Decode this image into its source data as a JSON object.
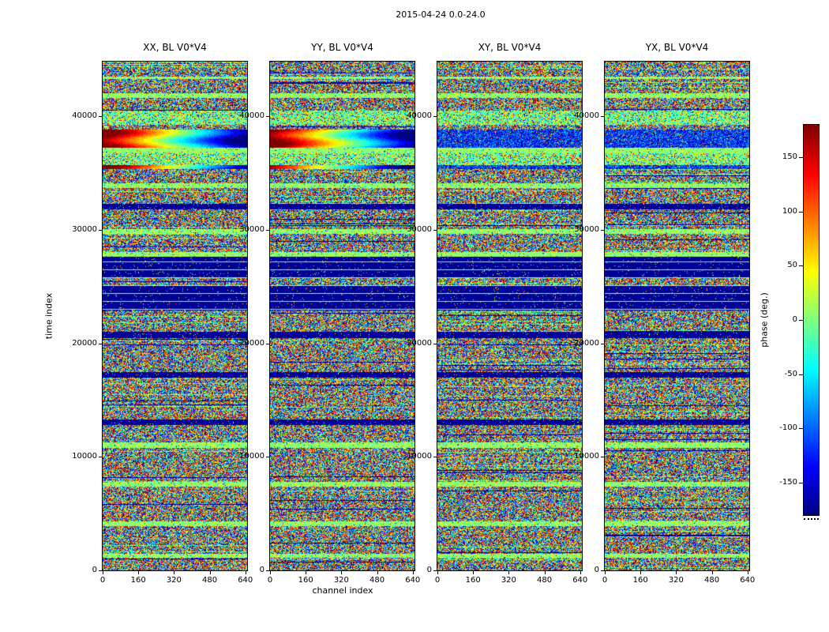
{
  "figure": {
    "title": "2015-04-24 0.0-24.0",
    "background": "#ffffff"
  },
  "chart_data": {
    "type": "heatmap",
    "title": "2015-04-24 0.0-24.0",
    "xlabel": "channel index",
    "ylabel": "time index",
    "x_axis": {
      "range": [
        0,
        648
      ],
      "ticks": [
        0,
        160,
        320,
        480,
        640
      ],
      "tick_labels": [
        "0",
        "160",
        "320",
        "480",
        "640"
      ]
    },
    "y_axis": {
      "range": [
        0,
        44800
      ],
      "ticks": [
        0,
        10000,
        20000,
        30000,
        40000
      ],
      "tick_labels": [
        "0",
        "10000",
        "20000",
        "30000",
        "40000"
      ]
    },
    "subplots": [
      {
        "pol": "XX",
        "title": "XX, BL V0*V4"
      },
      {
        "pol": "YY",
        "title": "YY, BL V0*V4"
      },
      {
        "pol": "XY",
        "title": "XY, BL V0*V4"
      },
      {
        "pol": "YX",
        "title": "YX, BL V0*V4"
      }
    ],
    "colorbar": {
      "label": "phase (deg.)",
      "min": -180,
      "max": 180,
      "ticks": [
        150,
        100,
        50,
        0,
        -50,
        -100,
        -150
      ],
      "tick_labels": [
        "150",
        "100",
        "50",
        "0",
        "-50",
        "-100",
        "-150"
      ],
      "colormap": "jet"
    },
    "bands": [
      {
        "from": 0.0,
        "to": 0.028,
        "type": "noise"
      },
      {
        "from": 0.028,
        "to": 0.034,
        "type": "green"
      },
      {
        "from": 0.034,
        "to": 0.062,
        "type": "noise"
      },
      {
        "from": 0.062,
        "to": 0.07,
        "type": "green"
      },
      {
        "from": 0.07,
        "to": 0.096,
        "type": "noise"
      },
      {
        "from": 0.096,
        "to": 0.124,
        "type": "green_noise"
      },
      {
        "from": 0.124,
        "to": 0.132,
        "type": "noise"
      },
      {
        "from": 0.132,
        "to": 0.168,
        "types": [
          "rainbow",
          "rainbow",
          "blue_dense",
          "blue_dense"
        ]
      },
      {
        "from": 0.168,
        "to": 0.18,
        "type": "green"
      },
      {
        "from": 0.18,
        "to": 0.202,
        "type": "green_noise"
      },
      {
        "from": 0.202,
        "to": 0.211,
        "types": [
          "rainbow",
          "rainbow",
          "blue_dense",
          "blue_dense"
        ]
      },
      {
        "from": 0.211,
        "to": 0.239,
        "type": "noise"
      },
      {
        "from": 0.239,
        "to": 0.248,
        "type": "green"
      },
      {
        "from": 0.248,
        "to": 0.279,
        "type": "noise"
      },
      {
        "from": 0.279,
        "to": 0.289,
        "type": "dark"
      },
      {
        "from": 0.289,
        "to": 0.329,
        "type": "noise"
      },
      {
        "from": 0.329,
        "to": 0.338,
        "type": "green"
      },
      {
        "from": 0.338,
        "to": 0.373,
        "type": "noise"
      },
      {
        "from": 0.373,
        "to": 0.382,
        "type": "green"
      },
      {
        "from": 0.382,
        "to": 0.425,
        "type": "dark_lines"
      },
      {
        "from": 0.425,
        "to": 0.438,
        "type": "noise"
      },
      {
        "from": 0.438,
        "to": 0.488,
        "type": "dark_lines"
      },
      {
        "from": 0.488,
        "to": 0.531,
        "type": "noise"
      },
      {
        "from": 0.531,
        "to": 0.543,
        "type": "dark"
      },
      {
        "from": 0.543,
        "to": 0.609,
        "type": "noise"
      },
      {
        "from": 0.609,
        "to": 0.621,
        "type": "dark"
      },
      {
        "from": 0.621,
        "to": 0.702,
        "type": "noise"
      },
      {
        "from": 0.702,
        "to": 0.714,
        "type": "dark"
      },
      {
        "from": 0.714,
        "to": 0.748,
        "type": "noise"
      },
      {
        "from": 0.748,
        "to": 0.758,
        "type": "green"
      },
      {
        "from": 0.758,
        "to": 0.826,
        "type": "noise"
      },
      {
        "from": 0.826,
        "to": 0.835,
        "type": "green"
      },
      {
        "from": 0.835,
        "to": 0.903,
        "type": "noise"
      },
      {
        "from": 0.903,
        "to": 0.913,
        "type": "green"
      },
      {
        "from": 0.913,
        "to": 0.966,
        "type": "noise"
      },
      {
        "from": 0.966,
        "to": 0.975,
        "type": "green"
      },
      {
        "from": 0.975,
        "to": 1.001,
        "type": "noise"
      }
    ]
  }
}
